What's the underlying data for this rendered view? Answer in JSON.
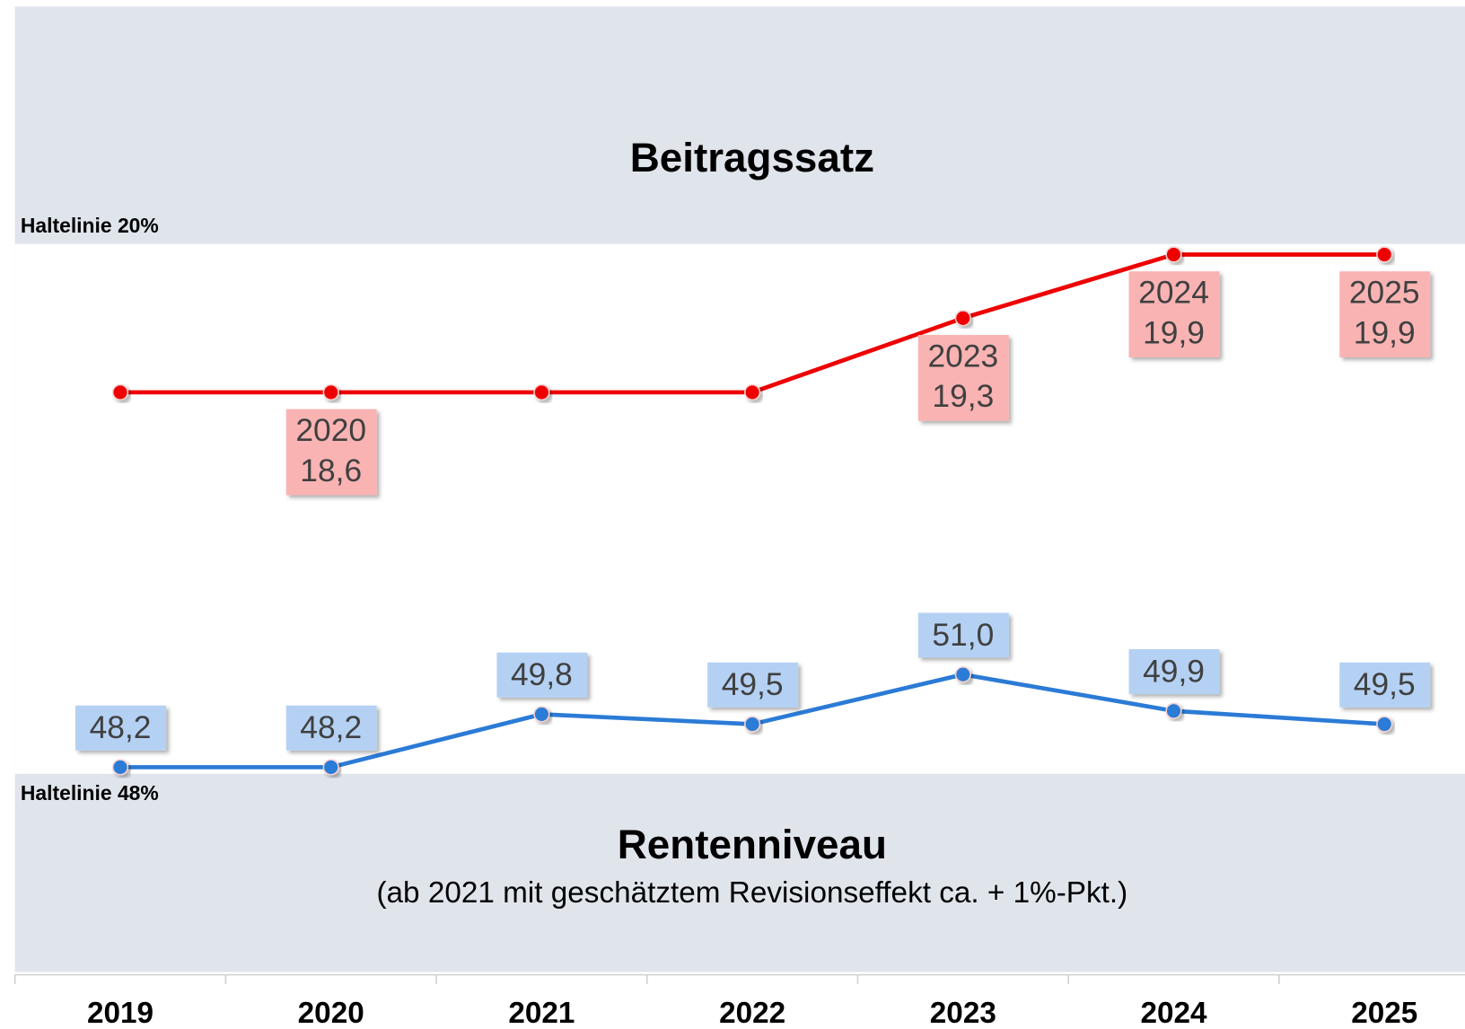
{
  "chart_data": {
    "type": "line",
    "subtitle": "(ab 2021 mit geschätztem Revisionseffekt ca. + 1%-Pkt.)",
    "annotations": [
      "Haltelinie 20%",
      "Haltelinie 48%"
    ],
    "categories": [
      "2019",
      "2020",
      "2021",
      "2022",
      "2023",
      "2024",
      "2025"
    ],
    "series": [
      {
        "name": "Beitragssatz",
        "color": "#ee0000",
        "values": [
          18.6,
          18.6,
          18.6,
          18.6,
          19.3,
          19.9,
          19.9
        ],
        "value_labels": [
          null,
          "18,6",
          null,
          null,
          "19,3",
          "19,9",
          "19,9"
        ],
        "label_color": "#f9b3b3"
      },
      {
        "name": "Rentenniveau",
        "color": "#2b7bd6",
        "axis": "y2",
        "values": [
          48.2,
          48.2,
          49.8,
          49.5,
          51.0,
          49.9,
          49.5
        ],
        "value_labels": [
          "48,2",
          "48,2",
          "49,8",
          "49,5",
          "51,0",
          "49,9",
          "49,5"
        ],
        "label_color": "#b4d1f4"
      }
    ],
    "ylim": [
      15,
      20
    ],
    "y2lim": [
      48,
      64
    ]
  }
}
